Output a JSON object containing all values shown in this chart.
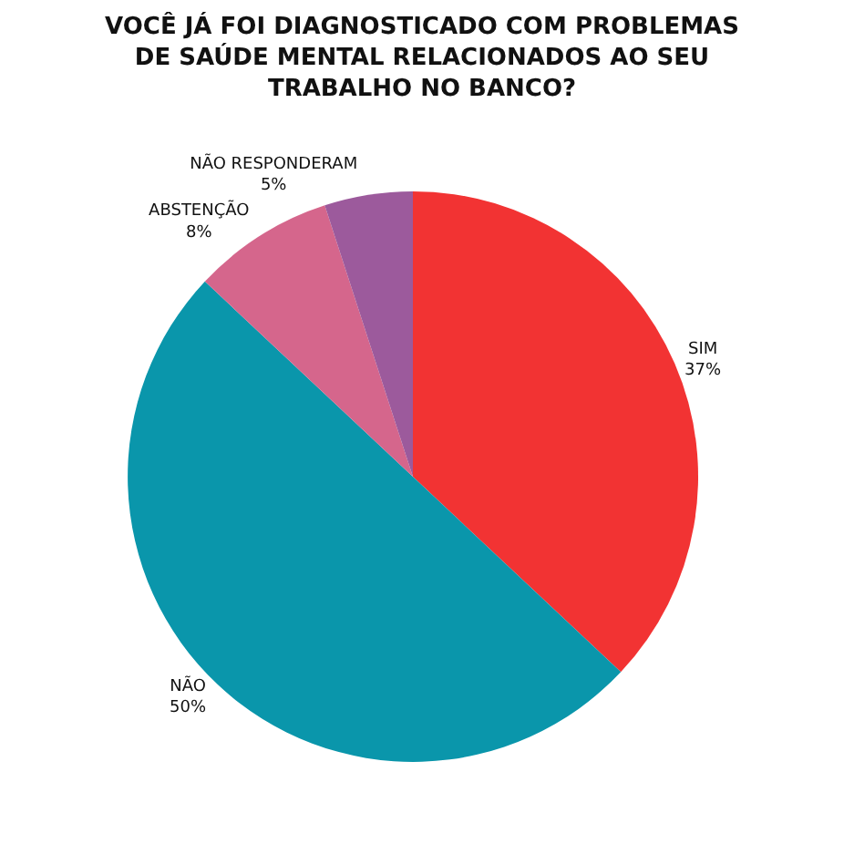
{
  "chart_data": {
    "type": "pie",
    "title": "VOCÊ JÁ FOI DIAGNOSTICADO COM PROBLEMAS\nDE SAÚDE MENTAL RELACIONADOS AO SEU\nTRABALHO NO BANCO?",
    "categories": [
      "SIM",
      "NÃO",
      "ABSTENÇÃO",
      "NÃO RESPONDERAM"
    ],
    "values": [
      37,
      50,
      8,
      5
    ],
    "value_labels": [
      "37%",
      "50%",
      "8%",
      "5%"
    ],
    "colors": [
      "#f23333",
      "#0a96ab",
      "#d5668c",
      "#9c5a9c"
    ],
    "legend": false
  }
}
